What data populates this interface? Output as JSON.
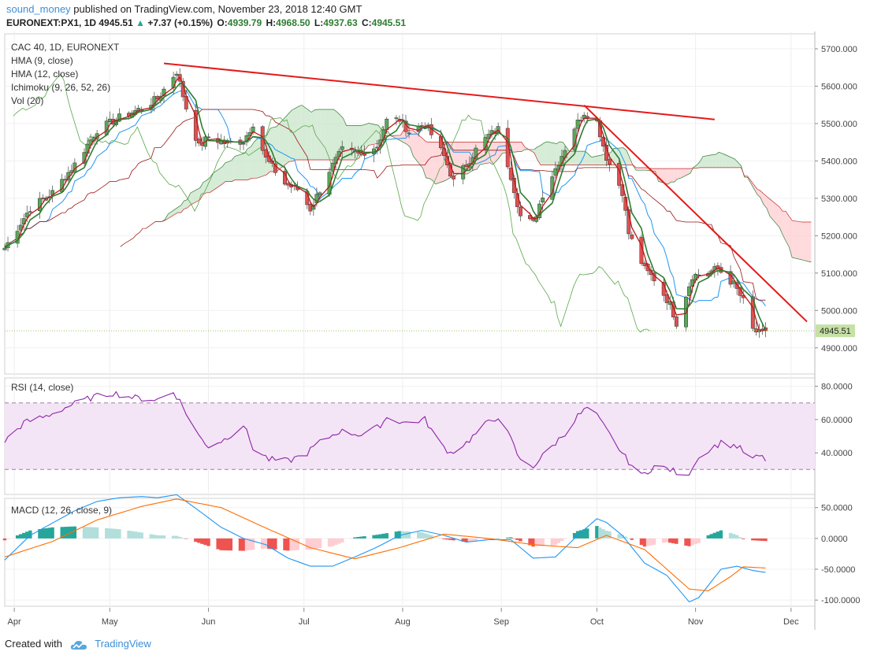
{
  "header": {
    "user": "sound_money",
    "published": "published on TradingView.com, November 23, 2018 12:40 GMT",
    "symbol": "EURONEXT:PX1, 1D",
    "last": "4945.51",
    "arrow": "▲",
    "change": "+7.37 (+0.15%)",
    "o_label": "O:",
    "o_value": "4939.79",
    "h_label": "H:",
    "h_value": "4968.50",
    "l_label": "L:",
    "l_value": "4937.63",
    "c_label": "C:",
    "c_value": "4945.51"
  },
  "price_legend": [
    "CAC 40, 1D, EURONEXT",
    "HMA (9, close)",
    "HMA (12, close)",
    "Ichimoku (9, 26, 52, 26)",
    "Vol (20)"
  ],
  "rsi_legend": "RSI (14, close)",
  "macd_legend": "MACD (12, 26, close, 9)",
  "footer": {
    "created": "Created with",
    "brand": "TradingView"
  },
  "colors": {
    "up": "#5aa75a",
    "down": "#e05050",
    "hma9": "#b71c1c",
    "hma12": "#2e7d32",
    "trendline": "#e41a1a",
    "tenkan": "#2196f3",
    "kijun": "#991515",
    "lagging": "#5aa84a",
    "cloud_bull": "#c8e6c9",
    "cloud_bear": "#ffcdd2",
    "rsi": "#8e24aa",
    "rsi_band": "#f3e5f5",
    "macd": "#2196f3",
    "signal": "#ff6d00",
    "hist_up_strong": "#26a69a",
    "hist_up_weak": "#b2dfdb",
    "hist_down_strong": "#ef5350",
    "hist_down_weak": "#ffcdd2"
  },
  "chart_data": [
    {
      "type": "candlestick",
      "title": "CAC 40, 1D, EURONEXT",
      "x_labels": [
        "Apr",
        "May",
        "Jun",
        "Jul",
        "Aug",
        "Sep",
        "Oct",
        "Nov",
        "Dec"
      ],
      "ylim": [
        4830,
        5740
      ],
      "y_ticks": [
        "5700.000",
        "5600.000",
        "5500.000",
        "5400.000",
        "5300.000",
        "5200.000",
        "5100.000",
        "5000.000",
        "4900.000"
      ],
      "last_price_label": "4945.51",
      "close_path": [
        [
          "2018-03-29",
          5167
        ],
        [
          "2018-04-06",
          5274
        ],
        [
          "2018-04-13",
          5315
        ],
        [
          "2018-04-20",
          5391
        ],
        [
          "2018-04-27",
          5483
        ],
        [
          "2018-05-04",
          5516
        ],
        [
          "2018-05-11",
          5541
        ],
        [
          "2018-05-16",
          5567
        ],
        [
          "2018-05-22",
          5640
        ],
        [
          "2018-05-25",
          5542
        ],
        [
          "2018-05-29",
          5438
        ],
        [
          "2018-06-01",
          5465
        ],
        [
          "2018-06-06",
          5448
        ],
        [
          "2018-06-12",
          5453
        ],
        [
          "2018-06-15",
          5501
        ],
        [
          "2018-06-19",
          5406
        ],
        [
          "2018-06-25",
          5339
        ],
        [
          "2018-06-29",
          5324
        ],
        [
          "2018-07-03",
          5271
        ],
        [
          "2018-07-09",
          5375
        ],
        [
          "2018-07-13",
          5429
        ],
        [
          "2018-07-18",
          5418
        ],
        [
          "2018-07-24",
          5440
        ],
        [
          "2018-07-27",
          5508
        ],
        [
          "2018-07-31",
          5511
        ],
        [
          "2018-08-03",
          5478
        ],
        [
          "2018-08-08",
          5500
        ],
        [
          "2018-08-14",
          5412
        ],
        [
          "2018-08-17",
          5345
        ],
        [
          "2018-08-21",
          5390
        ],
        [
          "2018-08-24",
          5430
        ],
        [
          "2018-08-28",
          5468
        ],
        [
          "2018-08-31",
          5485
        ],
        [
          "2018-09-04",
          5360
        ],
        [
          "2018-09-07",
          5252
        ],
        [
          "2018-09-11",
          5233
        ],
        [
          "2018-09-14",
          5311
        ],
        [
          "2018-09-19",
          5397
        ],
        [
          "2018-09-24",
          5490
        ],
        [
          "2018-09-27",
          5530
        ],
        [
          "2018-10-01",
          5505
        ],
        [
          "2018-10-04",
          5410
        ],
        [
          "2018-10-09",
          5318
        ],
        [
          "2018-10-11",
          5206
        ],
        [
          "2018-10-16",
          5110
        ],
        [
          "2018-10-19",
          5084
        ],
        [
          "2018-10-24",
          5016
        ],
        [
          "2018-10-26",
          4967
        ],
        [
          "2018-10-31",
          5093
        ],
        [
          "2018-11-05",
          5102
        ],
        [
          "2018-11-08",
          5112
        ],
        [
          "2018-11-13",
          5070
        ],
        [
          "2018-11-16",
          5025
        ],
        [
          "2018-11-19",
          4948
        ],
        [
          "2018-11-21",
          4938
        ],
        [
          "2018-11-23",
          4945.51
        ]
      ],
      "trendlines": [
        {
          "from": [
            "2018-05-18",
            5661
          ],
          "to": [
            "2018-11-07",
            5511
          ]
        },
        {
          "from": [
            "2018-09-27",
            5549
          ],
          "to": [
            "2018-12-06",
            4970
          ]
        }
      ],
      "kumo_resistance_label": "cloud"
    },
    {
      "type": "line",
      "title": "RSI (14, close)",
      "ylim": [
        15,
        85
      ],
      "y_ticks": [
        "80.0000",
        "60.0000",
        "40.0000"
      ],
      "band": [
        30,
        70
      ],
      "points": [
        [
          "2018-03-29",
          47
        ],
        [
          "2018-04-04",
          58
        ],
        [
          "2018-04-11",
          62
        ],
        [
          "2018-04-18",
          68
        ],
        [
          "2018-04-25",
          73
        ],
        [
          "2018-05-02",
          76
        ],
        [
          "2018-05-09",
          73
        ],
        [
          "2018-05-16",
          72
        ],
        [
          "2018-05-21",
          77
        ],
        [
          "2018-05-23",
          71
        ],
        [
          "2018-05-29",
          50
        ],
        [
          "2018-06-01",
          44
        ],
        [
          "2018-06-06",
          48
        ],
        [
          "2018-06-12",
          57
        ],
        [
          "2018-06-15",
          43
        ],
        [
          "2018-06-20",
          36
        ],
        [
          "2018-06-26",
          35
        ],
        [
          "2018-07-02",
          40
        ],
        [
          "2018-07-05",
          45
        ],
        [
          "2018-07-12",
          53
        ],
        [
          "2018-07-19",
          51
        ],
        [
          "2018-07-24",
          55
        ],
        [
          "2018-07-27",
          61
        ],
        [
          "2018-08-02",
          58
        ],
        [
          "2018-08-08",
          60
        ],
        [
          "2018-08-13",
          45
        ],
        [
          "2018-08-16",
          40
        ],
        [
          "2018-08-21",
          46
        ],
        [
          "2018-08-27",
          57
        ],
        [
          "2018-08-31",
          62
        ],
        [
          "2018-09-04",
          48
        ],
        [
          "2018-09-07",
          35
        ],
        [
          "2018-09-11",
          32
        ],
        [
          "2018-09-17",
          44
        ],
        [
          "2018-09-21",
          52
        ],
        [
          "2018-09-25",
          62
        ],
        [
          "2018-09-28",
          67
        ],
        [
          "2018-10-01",
          62
        ],
        [
          "2018-10-05",
          51
        ],
        [
          "2018-10-10",
          37
        ],
        [
          "2018-10-15",
          26
        ],
        [
          "2018-10-19",
          32
        ],
        [
          "2018-10-24",
          30
        ],
        [
          "2018-10-29",
          25
        ],
        [
          "2018-11-01",
          35
        ],
        [
          "2018-11-05",
          42
        ],
        [
          "2018-11-09",
          46
        ],
        [
          "2018-11-14",
          44
        ],
        [
          "2018-11-19",
          36
        ],
        [
          "2018-11-21",
          38
        ],
        [
          "2018-11-23",
          36
        ]
      ]
    },
    {
      "type": "line+bar",
      "title": "MACD (12, 26, close, 9)",
      "ylim": [
        -110,
        65
      ],
      "y_ticks": [
        "50.0000",
        "0.0000",
        "-50.0000",
        "-100.0000"
      ],
      "macd": [
        [
          "2018-03-29",
          -35
        ],
        [
          "2018-04-06",
          5
        ],
        [
          "2018-04-13",
          25
        ],
        [
          "2018-04-20",
          45
        ],
        [
          "2018-04-27",
          60
        ],
        [
          "2018-05-04",
          66
        ],
        [
          "2018-05-11",
          68
        ],
        [
          "2018-05-16",
          66
        ],
        [
          "2018-05-22",
          71
        ],
        [
          "2018-05-29",
          45
        ],
        [
          "2018-06-05",
          18
        ],
        [
          "2018-06-12",
          0
        ],
        [
          "2018-06-19",
          -10
        ],
        [
          "2018-06-26",
          -32
        ],
        [
          "2018-07-03",
          -45
        ],
        [
          "2018-07-10",
          -45
        ],
        [
          "2018-07-17",
          -30
        ],
        [
          "2018-07-24",
          -14
        ],
        [
          "2018-07-31",
          5
        ],
        [
          "2018-08-07",
          13
        ],
        [
          "2018-08-14",
          5
        ],
        [
          "2018-08-21",
          -6
        ],
        [
          "2018-08-28",
          -2
        ],
        [
          "2018-09-04",
          -2
        ],
        [
          "2018-09-11",
          -32
        ],
        [
          "2018-09-18",
          -30
        ],
        [
          "2018-09-25",
          5
        ],
        [
          "2018-10-01",
          32
        ],
        [
          "2018-10-04",
          26
        ],
        [
          "2018-10-09",
          5
        ],
        [
          "2018-10-16",
          -40
        ],
        [
          "2018-10-23",
          -60
        ],
        [
          "2018-10-30",
          -103
        ],
        [
          "2018-11-02",
          -96
        ],
        [
          "2018-11-09",
          -50
        ],
        [
          "2018-11-14",
          -45
        ],
        [
          "2018-11-19",
          -52
        ],
        [
          "2018-11-23",
          -55
        ]
      ],
      "signal": [
        [
          "2018-03-29",
          -30
        ],
        [
          "2018-04-13",
          -5
        ],
        [
          "2018-04-27",
          30
        ],
        [
          "2018-05-11",
          52
        ],
        [
          "2018-05-22",
          64
        ],
        [
          "2018-06-05",
          50
        ],
        [
          "2018-06-19",
          17
        ],
        [
          "2018-07-03",
          -15
        ],
        [
          "2018-07-17",
          -33
        ],
        [
          "2018-07-31",
          -15
        ],
        [
          "2018-08-14",
          7
        ],
        [
          "2018-08-28",
          0
        ],
        [
          "2018-09-11",
          -10
        ],
        [
          "2018-09-25",
          -15
        ],
        [
          "2018-10-04",
          5
        ],
        [
          "2018-10-16",
          -18
        ],
        [
          "2018-10-30",
          -82
        ],
        [
          "2018-11-05",
          -85
        ],
        [
          "2018-11-12",
          -62
        ],
        [
          "2018-11-16",
          -46
        ],
        [
          "2018-11-23",
          -48
        ]
      ]
    }
  ]
}
